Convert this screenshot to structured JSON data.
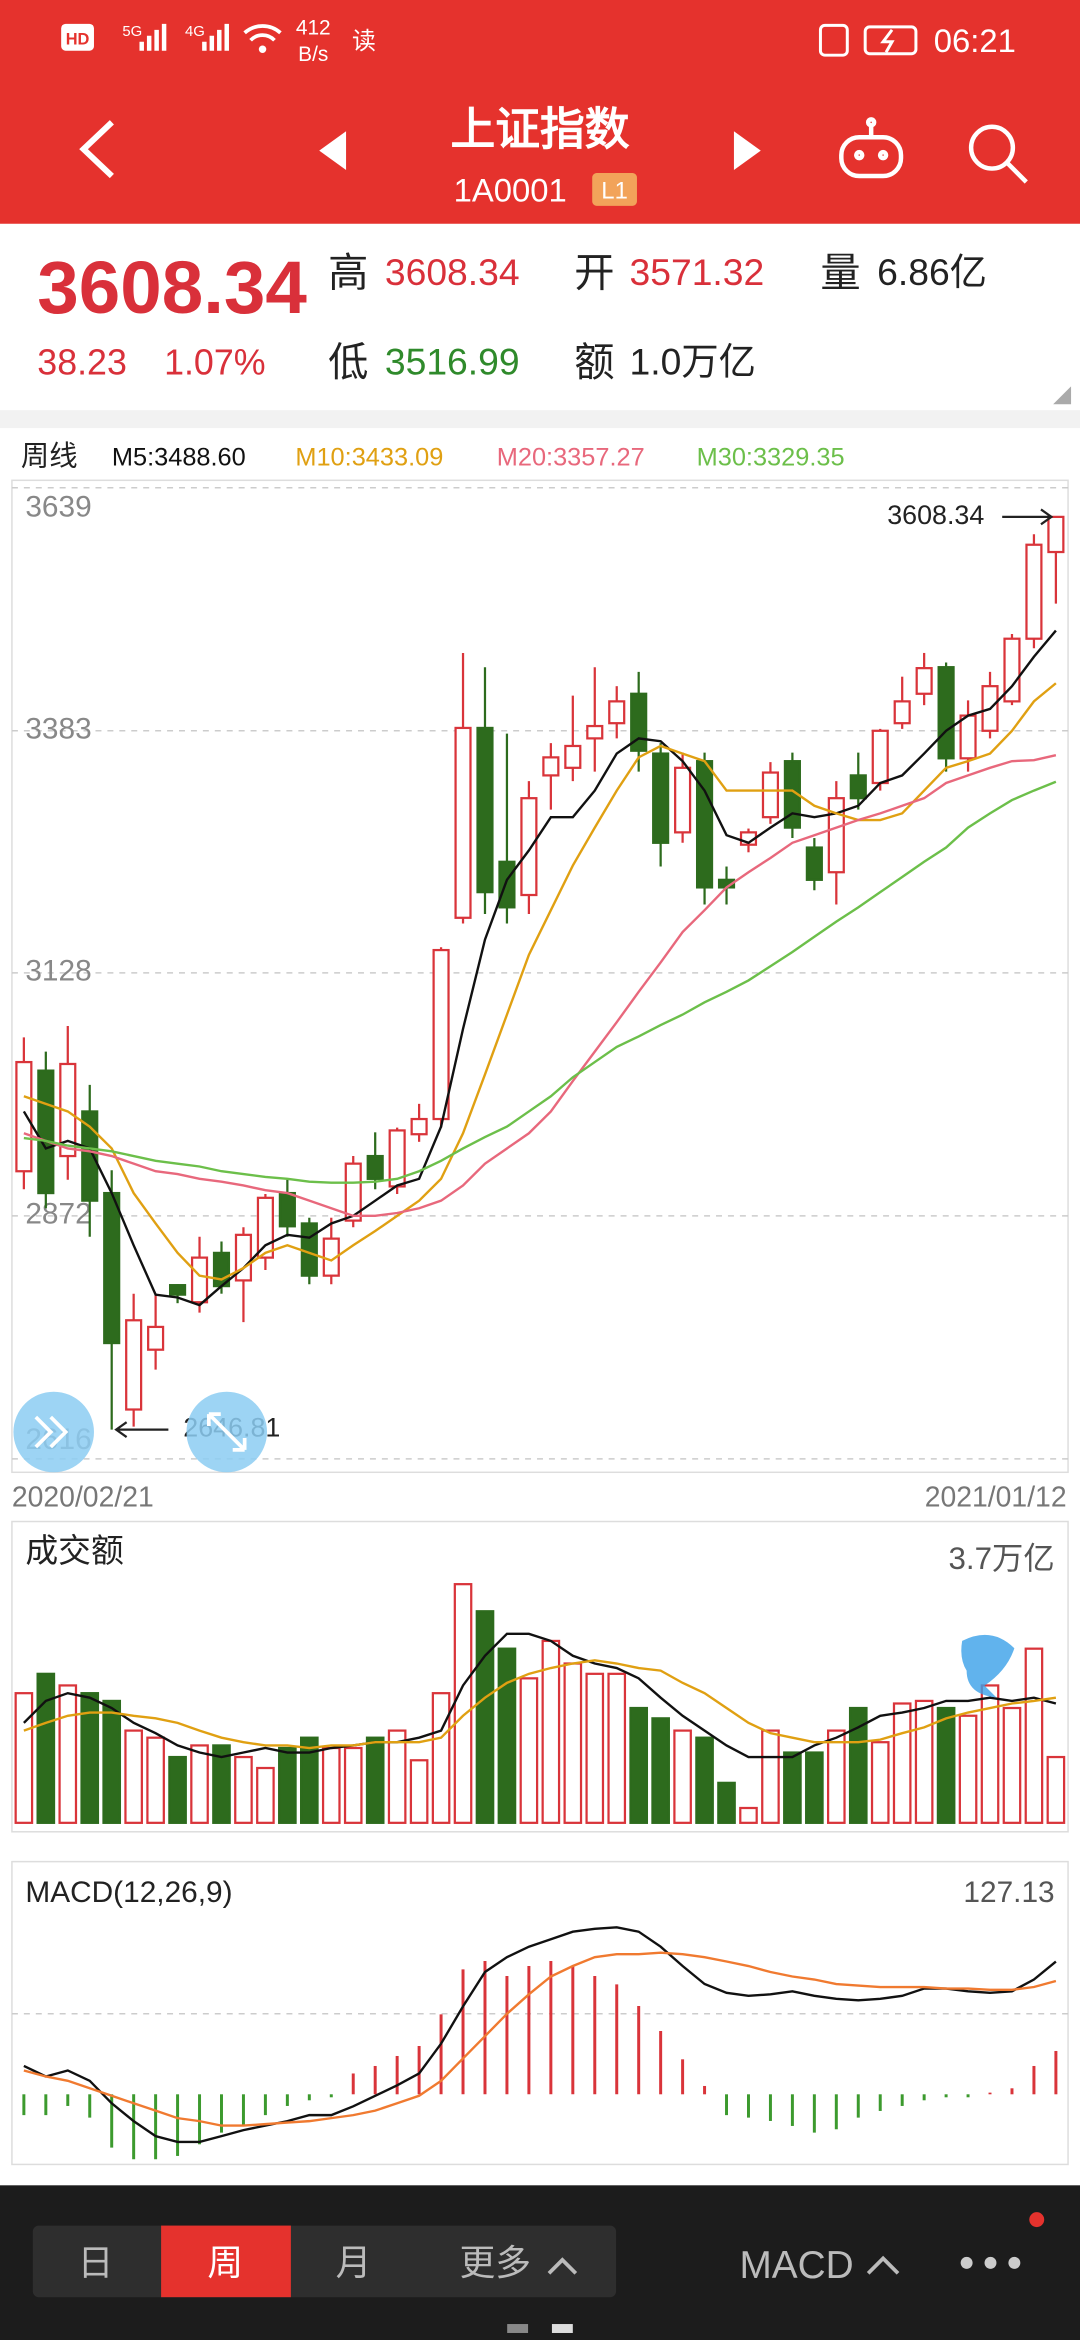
{
  "status_bar": {
    "signals": [
      "HD",
      "5G",
      "4G"
    ],
    "speed": "412",
    "speed_unit": "B/s",
    "reading": "读",
    "time": "06:21"
  },
  "nav": {
    "title": "上证指数",
    "code": "1A0001",
    "level": "L1"
  },
  "quote": {
    "price": "3608.34",
    "change": "38.23",
    "change_pct": "1.07%",
    "high_label": "高",
    "high": "3608.34",
    "open_label": "开",
    "open": "3571.32",
    "volume_label": "量",
    "volume": "6.86亿",
    "low_label": "低",
    "low": "3516.99",
    "amount_label": "额",
    "amount": "1.0万亿"
  },
  "chart_data": [
    {
      "type": "candlestick",
      "title": "周线",
      "up_color": "#d9343a",
      "down_color": "#2d6b1d",
      "categories": [
        "2020/02/21",
        null,
        null,
        null,
        null,
        null,
        null,
        null,
        null,
        null,
        null,
        null,
        null,
        null,
        null,
        null,
        null,
        null,
        null,
        null,
        null,
        null,
        null,
        null,
        null,
        null,
        null,
        null,
        null,
        null,
        null,
        null,
        null,
        null,
        null,
        null,
        null,
        null,
        null,
        null,
        null,
        null,
        null,
        null,
        null,
        null,
        null,
        "2021/01/12"
      ],
      "open": [
        2919,
        3025,
        2935,
        2982,
        2896,
        2668,
        2731,
        2799,
        2781,
        2833,
        2804,
        2828,
        2896,
        2864,
        2809,
        2867,
        2935,
        2903,
        2958,
        2974,
        3186,
        3386,
        3245,
        3210,
        3336,
        3344,
        3375,
        3391,
        3422,
        3359,
        3276,
        3351,
        3226,
        3263,
        3292,
        3351,
        3260,
        3234,
        3336,
        3328,
        3391,
        3422,
        3450,
        3354,
        3383,
        3414,
        3480,
        3571.32
      ],
      "high": [
        3060,
        3045,
        3072,
        3010,
        2920,
        2790,
        2790,
        2800,
        2850,
        2845,
        2860,
        2895,
        2910,
        2870,
        2870,
        2935,
        2960,
        2965,
        2990,
        3155,
        3465,
        3450,
        3380,
        3330,
        3370,
        3420,
        3450,
        3430,
        3445,
        3370,
        3360,
        3360,
        3240,
        3280,
        3350,
        3360,
        3270,
        3330,
        3360,
        3385,
        3440,
        3465,
        3455,
        3415,
        3445,
        3485,
        3590,
        3608.34
      ],
      "low": [
        2900,
        2880,
        2910,
        2850,
        2646.81,
        2650,
        2710,
        2780,
        2770,
        2790,
        2760,
        2815,
        2850,
        2800,
        2800,
        2860,
        2900,
        2895,
        2950,
        2965,
        3180,
        3190,
        3180,
        3190,
        3300,
        3330,
        3340,
        3375,
        3340,
        3240,
        3265,
        3200,
        3200,
        3255,
        3285,
        3270,
        3215,
        3200,
        3300,
        3320,
        3385,
        3410,
        3340,
        3340,
        3375,
        3410,
        3470,
        3516.99
      ],
      "close": [
        3034,
        2896,
        3032,
        2888,
        2738,
        2762,
        2755,
        2789,
        2828,
        2798,
        2852,
        2891,
        2861,
        2809,
        2848,
        2927,
        2911,
        2962,
        2974,
        3152,
        3386,
        3213,
        3197,
        3312,
        3355,
        3367,
        3388,
        3414,
        3362,
        3265,
        3344,
        3218,
        3218,
        3276,
        3339,
        3281,
        3226,
        3312,
        3312,
        3383,
        3414,
        3449,
        3354,
        3399,
        3430,
        3480,
        3579,
        3608.34
      ],
      "series": [
        {
          "name": "M5:3488.60",
          "color": "#111111",
          "values": [
            2982,
            2943,
            2951,
            2943,
            2896,
            2841,
            2789,
            2786,
            2778,
            2798,
            2817,
            2841,
            2852,
            2849,
            2864,
            2872,
            2888,
            2904,
            2911,
            2966,
            3069,
            3163,
            3226,
            3257,
            3292,
            3292,
            3320,
            3359,
            3375,
            3372,
            3351,
            3320,
            3273,
            3265,
            3281,
            3296,
            3292,
            3296,
            3304,
            3328,
            3336,
            3359,
            3383,
            3399,
            3406,
            3430,
            3461,
            3488.6
          ]
        },
        {
          "name": "M10:3433.09",
          "color": "#e0a012",
          "values": [
            2998,
            2990,
            2982,
            2966,
            2943,
            2896,
            2864,
            2833,
            2809,
            2805,
            2817,
            2833,
            2841,
            2833,
            2825,
            2841,
            2856,
            2872,
            2888,
            2911,
            2959,
            3021,
            3084,
            3147,
            3194,
            3241,
            3281,
            3320,
            3355,
            3367,
            3359,
            3351,
            3320,
            3320,
            3320,
            3320,
            3304,
            3296,
            3289,
            3289,
            3296,
            3320,
            3344,
            3351,
            3359,
            3383,
            3414,
            3433.09
          ]
        },
        {
          "name": "M20:3357.27",
          "color": "#e8687c",
          "values": [
            2959,
            2951,
            2943,
            2940,
            2935,
            2927,
            2919,
            2916,
            2911,
            2908,
            2904,
            2899,
            2896,
            2888,
            2880,
            2872,
            2872,
            2875,
            2880,
            2888,
            2904,
            2927,
            2943,
            2959,
            2982,
            3014,
            3045,
            3076,
            3108,
            3139,
            3171,
            3194,
            3218,
            3234,
            3249,
            3265,
            3273,
            3281,
            3289,
            3296,
            3304,
            3312,
            3328,
            3336,
            3344,
            3351,
            3352,
            3357.27
          ]
        },
        {
          "name": "M30:3329.35",
          "color": "#6cbf4a",
          "values": [
            2954,
            2951,
            2946,
            2943,
            2940,
            2935,
            2930,
            2927,
            2924,
            2919,
            2916,
            2913,
            2911,
            2908,
            2907,
            2907,
            2908,
            2911,
            2919,
            2930,
            2943,
            2955,
            2966,
            2982,
            2998,
            3018,
            3034,
            3050,
            3061,
            3073,
            3084,
            3097,
            3108,
            3120,
            3135,
            3150,
            3166,
            3182,
            3197,
            3213,
            3229,
            3245,
            3260,
            3281,
            3296,
            3310,
            3320,
            3329.35
          ]
        }
      ],
      "annotations": [
        {
          "value": 3608.34,
          "label": "3608.34"
        },
        {
          "value": 2646.81,
          "label": "2646.81"
        }
      ],
      "ylim": [
        2616,
        3639
      ],
      "yticks": [
        3639,
        3383,
        3128,
        2872,
        2616
      ],
      "grid": true
    },
    {
      "type": "bar",
      "title": "成交额",
      "values": [
        2.01,
        2.31,
        2.13,
        2.01,
        1.89,
        1.43,
        1.32,
        1.02,
        1.2,
        1.2,
        1.02,
        0.85,
        1.16,
        1.32,
        1.16,
        1.16,
        1.32,
        1.43,
        0.97,
        2.01,
        3.7,
        3.28,
        2.7,
        2.24,
        2.82,
        2.47,
        2.31,
        2.31,
        1.78,
        1.62,
        1.43,
        1.32,
        0.62,
        0.23,
        1.43,
        1.09,
        1.09,
        1.43,
        1.78,
        1.25,
        1.85,
        1.89,
        1.78,
        1.66,
        2.13,
        1.78,
        2.7,
        1.02
      ],
      "series": [
        {
          "color": "#111111",
          "values": [
            1.55,
            1.89,
            2.01,
            1.94,
            1.78,
            1.55,
            1.39,
            1.2,
            1.09,
            1.02,
            1.09,
            1.16,
            1.09,
            1.09,
            1.16,
            1.2,
            1.25,
            1.25,
            1.32,
            1.43,
            2.13,
            2.59,
            2.93,
            2.93,
            2.82,
            2.59,
            2.47,
            2.4,
            2.24,
            1.94,
            1.66,
            1.43,
            1.2,
            1.02,
            1.02,
            1.02,
            1.2,
            1.32,
            1.48,
            1.66,
            1.71,
            1.78,
            1.89,
            1.89,
            1.94,
            1.89,
            1.94,
            1.85
          ]
        },
        {
          "color": "#e0a012",
          "values": [
            1.43,
            1.55,
            1.66,
            1.71,
            1.71,
            1.66,
            1.62,
            1.55,
            1.43,
            1.32,
            1.25,
            1.2,
            1.2,
            1.16,
            1.2,
            1.2,
            1.25,
            1.25,
            1.25,
            1.32,
            1.66,
            1.94,
            2.17,
            2.31,
            2.4,
            2.47,
            2.52,
            2.47,
            2.4,
            2.36,
            2.17,
            2.01,
            1.78,
            1.55,
            1.39,
            1.32,
            1.25,
            1.25,
            1.25,
            1.29,
            1.39,
            1.48,
            1.62,
            1.71,
            1.78,
            1.85,
            1.89,
            1.94
          ]
        }
      ],
      "ylim": [
        0,
        3.7
      ],
      "yticks": [
        {
          "value": 3.7,
          "label": "3.7万亿"
        }
      ]
    },
    {
      "type": "macd",
      "title": "MACD(12,26,9)",
      "values": [
        -12.5,
        -12.5,
        -7,
        -14,
        -32,
        -39,
        -39,
        -37,
        -30,
        -23,
        -19,
        -12.5,
        -7,
        -3.6,
        -1.8,
        12.5,
        17,
        23,
        29,
        48,
        75,
        80,
        71,
        77,
        80,
        77,
        71,
        66,
        53,
        38,
        21,
        5,
        -12.5,
        -14,
        -16,
        -19,
        -23,
        -21,
        -14,
        -10,
        -7,
        -3.6,
        -1.8,
        -1.8,
        1,
        3.6,
        17,
        26
      ],
      "series": [
        {
          "color": "#111111",
          "values": [
            17,
            10.7,
            14.3,
            8.1,
            -5.4,
            -16.1,
            -25.1,
            -28.6,
            -28.6,
            -25.1,
            -21.5,
            -18.8,
            -16.1,
            -12.5,
            -12.5,
            -7.2,
            -0.9,
            5.4,
            12.5,
            30.4,
            52.8,
            73.4,
            82.3,
            88.6,
            93.1,
            97.6,
            99.3,
            100.2,
            97.6,
            88.6,
            77,
            66.2,
            60.9,
            59.1,
            60,
            61.8,
            59.1,
            57.3,
            56.4,
            57.3,
            59.1,
            63.5,
            63.5,
            61.8,
            60.9,
            61.8,
            68.9,
            79.7
          ]
        },
        {
          "color": "#f07a30",
          "values": [
            14.3,
            10.7,
            8.1,
            3.6,
            -0.9,
            -5.4,
            -9.8,
            -14.3,
            -16.1,
            -18.8,
            -18.8,
            -17.9,
            -17,
            -16.1,
            -14.3,
            -12.5,
            -9.8,
            -5.4,
            -0.9,
            8.1,
            21.5,
            34.9,
            48.3,
            60,
            70.7,
            77,
            82.3,
            84.1,
            84.1,
            85,
            84.1,
            82.3,
            79.7,
            77,
            73.4,
            70.7,
            68.9,
            66.2,
            65.3,
            64.4,
            64.4,
            64.4,
            63.5,
            63.5,
            62.7,
            62.7,
            64.4,
            68
          ]
        }
      ],
      "ylim": [
        -41.2,
        127.13
      ],
      "yticks": [
        127.13
      ]
    }
  ],
  "tabs": [
    "日",
    "周",
    "月",
    "更多"
  ],
  "indicator": "MACD"
}
